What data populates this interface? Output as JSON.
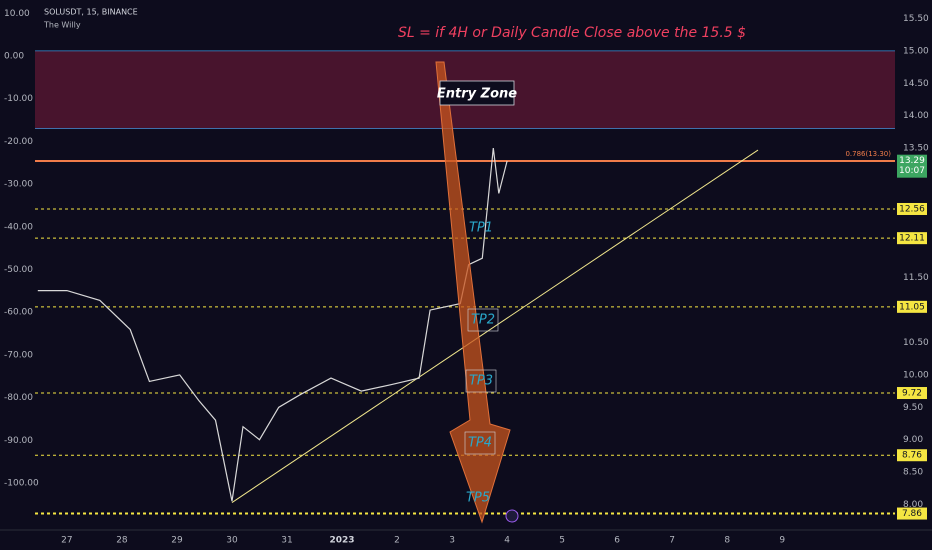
{
  "chart_data": {
    "type": "line",
    "title": "SOLUSDT, 15, BINANCE",
    "subtitle": "The Willy",
    "annotations": [
      "SL = if 4H or Daily Candle Close above the 15.5 $",
      "Entry Zone",
      "TP1",
      "TP2",
      "TP3",
      "TP4",
      "TP5"
    ],
    "xlim": [
      -0.58,
      15.05
    ],
    "xticks": [
      {
        "value": 0,
        "label": "27"
      },
      {
        "value": 1,
        "label": "28"
      },
      {
        "value": 2,
        "label": "29"
      },
      {
        "value": 3,
        "label": "30"
      },
      {
        "value": 4,
        "label": "31"
      },
      {
        "value": 5,
        "label": "2023"
      },
      {
        "value": 6,
        "label": "2"
      },
      {
        "value": 7,
        "label": "3"
      },
      {
        "value": 8,
        "label": "4"
      },
      {
        "value": 9,
        "label": "5"
      },
      {
        "value": 10,
        "label": "6"
      },
      {
        "value": 11,
        "label": "7"
      },
      {
        "value": 12,
        "label": "8"
      },
      {
        "value": 13,
        "label": "9"
      }
    ],
    "ylim": [
      -108.9,
      10.3
    ],
    "yticks": [
      {
        "value": 10,
        "label": "10.00"
      },
      {
        "value": 0,
        "label": "0.00"
      },
      {
        "value": -10,
        "label": "-10.00"
      },
      {
        "value": -20,
        "label": "-20.00"
      },
      {
        "value": -30,
        "label": "-30.00"
      },
      {
        "value": -40,
        "label": "-40.00"
      },
      {
        "value": -50,
        "label": "-50.00"
      },
      {
        "value": -60,
        "label": "-60.00"
      },
      {
        "value": -70,
        "label": "-70.00"
      },
      {
        "value": -80,
        "label": "-80.00"
      },
      {
        "value": -90,
        "label": "-90.00"
      },
      {
        "value": -100,
        "label": "-100.00"
      }
    ],
    "y2lim": [
      7.745,
      15.6
    ],
    "y2ticks": [
      {
        "value": 15.5,
        "label": "15.50"
      },
      {
        "value": 15,
        "label": "15.00"
      },
      {
        "value": 14.5,
        "label": "14.50"
      },
      {
        "value": 14,
        "label": "14.00"
      },
      {
        "value": 13.5,
        "label": "13.50"
      },
      {
        "value": 11.5,
        "label": "11.50"
      },
      {
        "value": 10.5,
        "label": "10.50"
      },
      {
        "value": 10,
        "label": "10.00"
      },
      {
        "value": 9.5,
        "label": "9.50"
      },
      {
        "value": 9,
        "label": "9.00"
      },
      {
        "value": 8.5,
        "label": "8.50"
      },
      {
        "value": 8,
        "label": "8.00"
      }
    ],
    "series": [
      {
        "color": "#d8d8d8",
        "axis": "y2",
        "x": [
          -0.53,
          0,
          0.6,
          1.15,
          1.5,
          2.05,
          2.4,
          2.7,
          3.0,
          3.2,
          3.5,
          3.85,
          4.25,
          4.8,
          5.35,
          5.9,
          6.4,
          6.6,
          7.15,
          7.3,
          7.55,
          7.75,
          7.85,
          8.0
        ],
        "values": [
          11.3,
          11.3,
          11.15,
          10.7,
          9.9,
          10.0,
          9.6,
          9.3,
          8.05,
          9.2,
          9.0,
          9.5,
          9.7,
          9.95,
          9.75,
          9.85,
          9.95,
          11.0,
          11.1,
          11.7,
          11.8,
          13.5,
          12.8,
          13.3
        ]
      }
    ],
    "zone": [
      13.8,
      15.0
    ],
    "zone_color": "#7a1c3a",
    "fib": {
      "value": 13.3,
      "label": "0.786(13.30)",
      "color": "#f07c4a"
    },
    "levels": [
      {
        "value": 12.56,
        "label": "12.56"
      },
      {
        "value": 12.11,
        "label": "12.11"
      },
      {
        "value": 11.05,
        "label": "11.05"
      },
      {
        "value": 9.72,
        "label": "9.72"
      },
      {
        "value": 8.76,
        "label": "8.76"
      },
      {
        "value": 7.86,
        "label": "7.86"
      }
    ],
    "level_color": "#f5e642",
    "last_price": {
      "value": 13.29,
      "label": "13.29",
      "countdown": "10:07",
      "color": "#3ca661"
    },
    "trendline": {
      "x": [
        3.0,
        12.56
      ],
      "values": [
        8.03,
        13.47
      ],
      "color": "#f0e68c"
    }
  }
}
